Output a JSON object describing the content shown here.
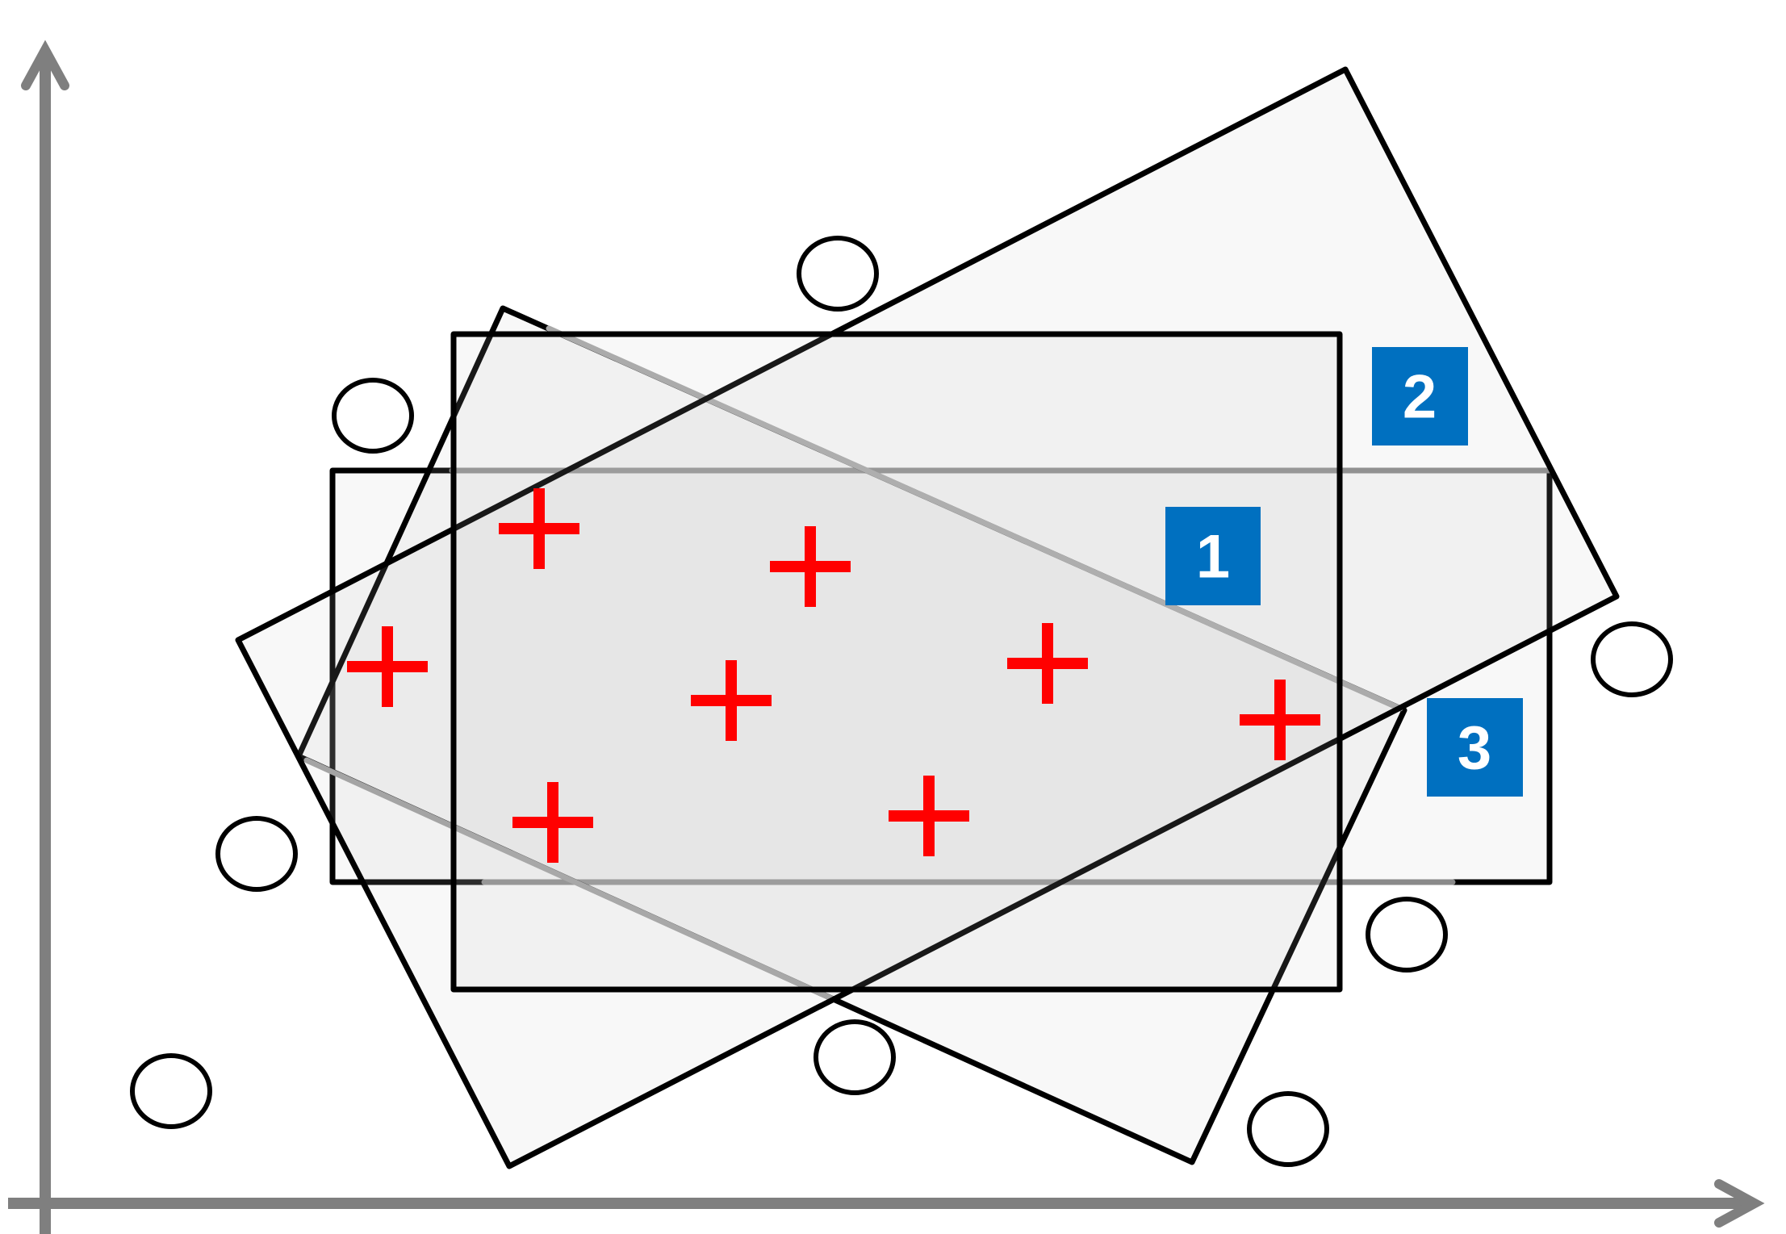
{
  "diagram": {
    "region_labels": [
      "1",
      "2",
      "3"
    ],
    "colors": {
      "axis": "#7f7f7f",
      "region_outline": "#000000",
      "positive_marker": "#ff0000",
      "negative_marker": "#000000",
      "label_box": "#0070c0",
      "label_text": "#ffffff"
    },
    "icons": {
      "positive": "plus-icon",
      "negative": "circle-icon"
    }
  }
}
